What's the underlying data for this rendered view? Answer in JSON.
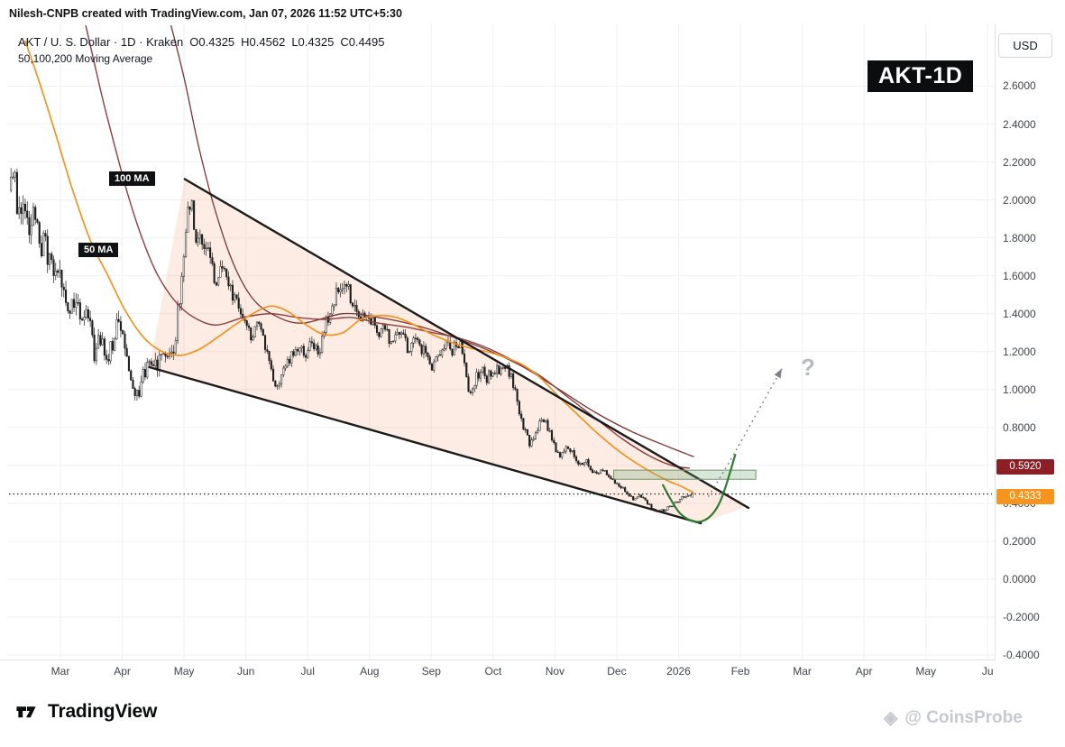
{
  "attribution": "Nilesh-CNPB created with TradingView.com, Jan 07, 2026 11:52 UTC+5:30",
  "header": {
    "symbol_title": "AKT / U. S. Dollar · 1D · Kraken",
    "ohlc": {
      "o_label": "O",
      "o_value": "0.4325",
      "h_label": "H",
      "h_value": "0.4562",
      "l_label": "L",
      "l_value": "0.4325",
      "c_label": "C",
      "c_value": "0.4495"
    },
    "indicator_line": "50,100,200 Moving Average"
  },
  "currency_button": "USD",
  "symbol_watermark": "AKT-1D",
  "ma_labels": {
    "ma100": "100 MA",
    "ma50": "50 MA"
  },
  "annotations": {
    "question_mark": "?"
  },
  "price_axis": {
    "ticks": [
      "2.6000",
      "2.4000",
      "2.2000",
      "2.0000",
      "1.8000",
      "1.6000",
      "1.4000",
      "1.2000",
      "1.0000",
      "0.8000",
      "0.4000",
      "0.2000",
      "0.0000",
      "-0.2000",
      "-0.4000"
    ],
    "badges": [
      {
        "value": "0.5920",
        "bg": "#8c1f26"
      },
      {
        "value": "0.4333",
        "bg": "#f7941e"
      }
    ]
  },
  "time_axis": {
    "labels": [
      "Mar",
      "Apr",
      "May",
      "Jun",
      "Jul",
      "Aug",
      "Sep",
      "Oct",
      "Nov",
      "Dec",
      "2026",
      "Feb",
      "Mar",
      "Apr",
      "May",
      "Ju"
    ]
  },
  "footer": {
    "logo_text": "TradingView",
    "watermark_text": "@ CoinsProbe"
  },
  "chart_data": {
    "type": "candlestick",
    "title": "AKT / U. S. Dollar, 1D, Kraken",
    "exchange": "Kraken",
    "interval": "1D",
    "last_candle": {
      "open": 0.4325,
      "high": 0.4562,
      "low": 0.4325,
      "close": 0.4495
    },
    "x_unit": "months from 2025-03-01",
    "xlim": [
      -0.85,
      15.05
    ],
    "ylim": [
      -0.45,
      2.92
    ],
    "y_tick_step": 0.2,
    "dotted_price_level": 0.4495,
    "price_path": [
      [
        -0.8,
        2.05
      ],
      [
        -0.72,
        2.18
      ],
      [
        -0.65,
        1.92
      ],
      [
        -0.55,
        2.0
      ],
      [
        -0.45,
        1.82
      ],
      [
        -0.38,
        1.95
      ],
      [
        -0.3,
        1.72
      ],
      [
        -0.22,
        1.78
      ],
      [
        -0.12,
        1.62
      ],
      [
        -0.02,
        1.68
      ],
      [
        0.08,
        1.5
      ],
      [
        0.18,
        1.4
      ],
      [
        0.28,
        1.52
      ],
      [
        0.38,
        1.32
      ],
      [
        0.48,
        1.4
      ],
      [
        0.58,
        1.18
      ],
      [
        0.68,
        1.28
      ],
      [
        0.78,
        1.12
      ],
      [
        0.88,
        1.25
      ],
      [
        0.98,
        1.38
      ],
      [
        1.08,
        1.22
      ],
      [
        1.18,
        1.05
      ],
      [
        1.28,
        0.96
      ],
      [
        1.38,
        1.08
      ],
      [
        1.48,
        1.15
      ],
      [
        1.58,
        1.12
      ],
      [
        1.68,
        1.18
      ],
      [
        1.78,
        1.15
      ],
      [
        1.88,
        1.25
      ],
      [
        1.95,
        1.45
      ],
      [
        2.02,
        1.72
      ],
      [
        2.08,
        1.95
      ],
      [
        2.15,
        2.02
      ],
      [
        2.22,
        1.78
      ],
      [
        2.28,
        1.88
      ],
      [
        2.35,
        1.72
      ],
      [
        2.42,
        1.8
      ],
      [
        2.5,
        1.62
      ],
      [
        2.58,
        1.55
      ],
      [
        2.66,
        1.68
      ],
      [
        2.74,
        1.58
      ],
      [
        2.84,
        1.48
      ],
      [
        2.94,
        1.42
      ],
      [
        3.04,
        1.32
      ],
      [
        3.14,
        1.28
      ],
      [
        3.24,
        1.38
      ],
      [
        3.34,
        1.22
      ],
      [
        3.44,
        1.1
      ],
      [
        3.52,
        0.98
      ],
      [
        3.6,
        1.08
      ],
      [
        3.7,
        1.15
      ],
      [
        3.8,
        1.18
      ],
      [
        3.9,
        1.22
      ],
      [
        4.0,
        1.2
      ],
      [
        4.1,
        1.24
      ],
      [
        4.2,
        1.18
      ],
      [
        4.3,
        1.32
      ],
      [
        4.4,
        1.42
      ],
      [
        4.5,
        1.52
      ],
      [
        4.58,
        1.48
      ],
      [
        4.66,
        1.55
      ],
      [
        4.76,
        1.45
      ],
      [
        4.86,
        1.38
      ],
      [
        4.96,
        1.42
      ],
      [
        5.06,
        1.38
      ],
      [
        5.16,
        1.3
      ],
      [
        5.26,
        1.35
      ],
      [
        5.36,
        1.25
      ],
      [
        5.46,
        1.32
      ],
      [
        5.56,
        1.28
      ],
      [
        5.66,
        1.22
      ],
      [
        5.76,
        1.28
      ],
      [
        5.86,
        1.22
      ],
      [
        5.96,
        1.18
      ],
      [
        6.06,
        1.12
      ],
      [
        6.16,
        1.18
      ],
      [
        6.26,
        1.24
      ],
      [
        6.36,
        1.2
      ],
      [
        6.46,
        1.26
      ],
      [
        6.56,
        1.18
      ],
      [
        6.64,
        0.98
      ],
      [
        6.74,
        1.05
      ],
      [
        6.84,
        1.1
      ],
      [
        6.94,
        1.06
      ],
      [
        7.04,
        1.12
      ],
      [
        7.14,
        1.08
      ],
      [
        7.24,
        1.14
      ],
      [
        7.34,
        1.05
      ],
      [
        7.44,
        0.92
      ],
      [
        7.52,
        0.8
      ],
      [
        7.62,
        0.72
      ],
      [
        7.72,
        0.78
      ],
      [
        7.82,
        0.85
      ],
      [
        7.92,
        0.8
      ],
      [
        8.02,
        0.7
      ],
      [
        8.12,
        0.64
      ],
      [
        8.22,
        0.72
      ],
      [
        8.32,
        0.66
      ],
      [
        8.42,
        0.6
      ],
      [
        8.52,
        0.63
      ],
      [
        8.62,
        0.58
      ],
      [
        8.72,
        0.55
      ],
      [
        8.82,
        0.58
      ],
      [
        8.92,
        0.54
      ],
      [
        9.02,
        0.5
      ],
      [
        9.12,
        0.48
      ],
      [
        9.22,
        0.45
      ],
      [
        9.32,
        0.42
      ],
      [
        9.42,
        0.44
      ],
      [
        9.52,
        0.4
      ],
      [
        9.62,
        0.37
      ],
      [
        9.72,
        0.355
      ],
      [
        9.82,
        0.37
      ],
      [
        9.92,
        0.39
      ],
      [
        10.02,
        0.41
      ],
      [
        10.1,
        0.43
      ],
      [
        10.16,
        0.445
      ],
      [
        10.22,
        0.4495
      ]
    ],
    "ma50": [
      [
        -0.57,
        2.84
      ],
      [
        -0.32,
        2.6
      ],
      [
        -0.07,
        2.34
      ],
      [
        0.19,
        2.06
      ],
      [
        0.48,
        1.79
      ],
      [
        0.77,
        1.6
      ],
      [
        1.06,
        1.41
      ],
      [
        1.36,
        1.27
      ],
      [
        1.65,
        1.2
      ],
      [
        1.94,
        1.18
      ],
      [
        2.23,
        1.21
      ],
      [
        2.52,
        1.27
      ],
      [
        2.82,
        1.34
      ],
      [
        3.11,
        1.4
      ],
      [
        3.4,
        1.44
      ],
      [
        3.69,
        1.41
      ],
      [
        3.98,
        1.34
      ],
      [
        4.27,
        1.29
      ],
      [
        4.57,
        1.3
      ],
      [
        4.86,
        1.37
      ],
      [
        5.15,
        1.39
      ],
      [
        5.44,
        1.38
      ],
      [
        5.73,
        1.34
      ],
      [
        6.02,
        1.29
      ],
      [
        6.32,
        1.25
      ],
      [
        6.61,
        1.22
      ],
      [
        6.9,
        1.2
      ],
      [
        7.19,
        1.17
      ],
      [
        7.48,
        1.13
      ],
      [
        7.77,
        1.06
      ],
      [
        8.07,
        0.96
      ],
      [
        8.36,
        0.87
      ],
      [
        8.65,
        0.78
      ],
      [
        8.94,
        0.7
      ],
      [
        9.23,
        0.63
      ],
      [
        9.53,
        0.57
      ],
      [
        9.82,
        0.52
      ],
      [
        10.04,
        0.49
      ],
      [
        10.25,
        0.455
      ]
    ],
    "ma100": [
      [
        0.41,
        2.92
      ],
      [
        0.55,
        2.72
      ],
      [
        0.7,
        2.51
      ],
      [
        0.89,
        2.27
      ],
      [
        1.09,
        2.03
      ],
      [
        1.33,
        1.79
      ],
      [
        1.58,
        1.6
      ],
      [
        1.87,
        1.46
      ],
      [
        2.16,
        1.38
      ],
      [
        2.52,
        1.34
      ],
      [
        2.96,
        1.38
      ],
      [
        3.4,
        1.4
      ],
      [
        3.84,
        1.38
      ],
      [
        4.27,
        1.37
      ],
      [
        4.71,
        1.38
      ],
      [
        5.15,
        1.35
      ],
      [
        5.59,
        1.33
      ],
      [
        6.02,
        1.3
      ],
      [
        6.46,
        1.27
      ],
      [
        6.9,
        1.22
      ],
      [
        7.34,
        1.15
      ],
      [
        7.77,
        1.07
      ],
      [
        8.21,
        0.96
      ],
      [
        8.65,
        0.85
      ],
      [
        9.09,
        0.74
      ],
      [
        9.53,
        0.65
      ],
      [
        9.89,
        0.6
      ],
      [
        10.18,
        0.585
      ]
    ],
    "ma200": [
      [
        1.79,
        2.92
      ],
      [
        2.01,
        2.63
      ],
      [
        2.23,
        2.29
      ],
      [
        2.49,
        1.96
      ],
      [
        2.79,
        1.67
      ],
      [
        3.11,
        1.48
      ],
      [
        3.47,
        1.39
      ],
      [
        3.91,
        1.35
      ],
      [
        4.57,
        1.4
      ],
      [
        5.15,
        1.38
      ],
      [
        5.73,
        1.34
      ],
      [
        6.32,
        1.28
      ],
      [
        6.9,
        1.21
      ],
      [
        7.48,
        1.12
      ],
      [
        8.07,
        1.0
      ],
      [
        8.65,
        0.88
      ],
      [
        9.23,
        0.78
      ],
      [
        9.82,
        0.7
      ],
      [
        10.25,
        0.645
      ]
    ],
    "trendlines": {
      "upper": [
        [
          2.01,
          2.11
        ],
        [
          11.13,
          0.376
        ]
      ],
      "lower": [
        [
          1.44,
          1.118
        ],
        [
          10.36,
          0.295
        ]
      ]
    },
    "resistance_zone": {
      "t_start": 8.95,
      "t_end": 11.25,
      "price_low": 0.527,
      "price_high": 0.575
    },
    "rounded_bottom_curve": [
      [
        9.74,
        0.5
      ],
      [
        10.03,
        0.345
      ],
      [
        10.37,
        0.305
      ],
      [
        10.66,
        0.4
      ],
      [
        10.92,
        0.66
      ]
    ],
    "projection_arrow": [
      [
        10.48,
        0.435
      ],
      [
        10.86,
        0.64
      ],
      [
        11.67,
        1.11
      ]
    ],
    "colors": {
      "candle_up": "#ffffff",
      "candle_down": "#1c1c1c",
      "candle_border": "#1c1c1c",
      "ma50": "#f2941f",
      "ma100": "#8f3d3b",
      "ma200": "#7c3333",
      "trendline": "#1b1b1b",
      "wedge_fill": "rgba(244,138,85,0.16)",
      "zone_fill": "rgba(110,168,110,0.28)",
      "zone_border": "#74946f",
      "curve": "#2f7d33",
      "projection": "#7d828a",
      "grid": "#f0f1f3",
      "dotted_line": "#111111"
    }
  }
}
